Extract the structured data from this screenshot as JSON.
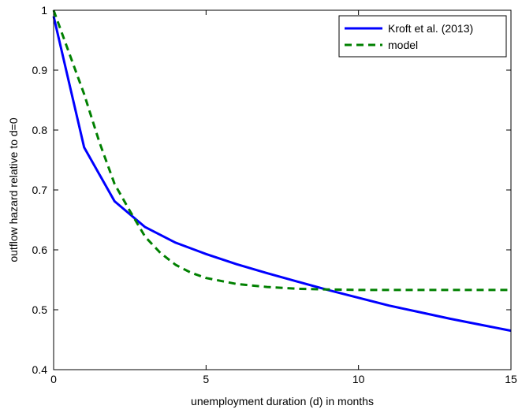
{
  "chart_data": {
    "type": "line",
    "xlabel": "unemployment duration (d) in months",
    "ylabel": "outflow hazard relative to d=0",
    "xlim": [
      0,
      15
    ],
    "ylim": [
      0.4,
      1
    ],
    "xticks": [
      0,
      5,
      10,
      15
    ],
    "xtick_labels": [
      "0",
      "5",
      "10",
      "15"
    ],
    "yticks": [
      0.4,
      0.5,
      0.6,
      0.7,
      0.8,
      0.9,
      1
    ],
    "ytick_labels": [
      "0.4",
      "0.5",
      "0.6",
      "0.7",
      "0.8",
      "0.9",
      "1"
    ],
    "grid": false,
    "legend_position": "top-right",
    "series": [
      {
        "name": "Kroft et al. (2013)",
        "color": "#0000ff",
        "style": "solid",
        "x": [
          0,
          1,
          2,
          3,
          4,
          5,
          6,
          7,
          8,
          9,
          10,
          11,
          12,
          13,
          14,
          15
        ],
        "y": [
          0.99,
          0.771,
          0.681,
          0.638,
          0.612,
          0.593,
          0.576,
          0.561,
          0.547,
          0.533,
          0.52,
          0.507,
          0.496,
          0.485,
          0.475,
          0.465
        ]
      },
      {
        "name": "model",
        "color": "#008000",
        "style": "dashed",
        "x": [
          0,
          0.5,
          1,
          1.5,
          2,
          2.5,
          3,
          3.5,
          4,
          4.5,
          5,
          6,
          7,
          8,
          9,
          10,
          11,
          12,
          13,
          14,
          15
        ],
        "y": [
          1.0,
          0.93,
          0.86,
          0.78,
          0.71,
          0.665,
          0.622,
          0.595,
          0.575,
          0.562,
          0.553,
          0.543,
          0.538,
          0.535,
          0.534,
          0.533,
          0.533,
          0.533,
          0.533,
          0.533,
          0.533
        ]
      }
    ]
  }
}
